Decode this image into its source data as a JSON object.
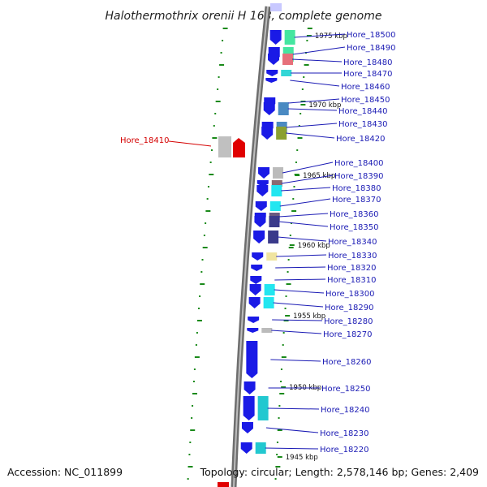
{
  "title": "Halothermothrix orenii H 168, complete genome",
  "footer": {
    "accession": "Accession: NC_011899",
    "summary": "Topology: circular; Length: 2,578,146 bp; Genes: 2,409"
  },
  "colors": {
    "backbone": "#7a7a7a",
    "cds_strand": "#1a1ae6",
    "label": "#1a1ab4",
    "highlight": "#d40000",
    "tick": "#1a8a1a"
  },
  "scale_labels": [
    "1975 kbp",
    "1970 kbp",
    "1965 kbp",
    "1960 kbp",
    "1955 kbp",
    "1950 kbp",
    "1945 kbp"
  ],
  "genes": [
    {
      "locus": "Hore_18500",
      "cog_color": "#44e6a0"
    },
    {
      "locus": "Hore_18490",
      "cog_color": "#44e6a0"
    },
    {
      "locus": "Hore_18480",
      "cog_color": "#e6707a"
    },
    {
      "locus": "Hore_18470",
      "cog_color": "#33d6d6"
    },
    {
      "locus": "Hore_18460",
      "cog_color": ""
    },
    {
      "locus": "Hore_18450",
      "cog_color": ""
    },
    {
      "locus": "Hore_18440",
      "cog_color": "#4a8ac2"
    },
    {
      "locus": "Hore_18430",
      "cog_color": "#4a8ac2"
    },
    {
      "locus": "Hore_18420",
      "cog_color": "#8aa030"
    },
    {
      "locus": "Hore_18400",
      "cog_color": "#bbbbbb"
    },
    {
      "locus": "Hore_18390",
      "cog_color": "#8a6a70"
    },
    {
      "locus": "Hore_18380",
      "cog_color": "#22e6f0"
    },
    {
      "locus": "Hore_18370",
      "cog_color": "#22e6f0"
    },
    {
      "locus": "Hore_18360",
      "cog_color": "#6a5a80"
    },
    {
      "locus": "Hore_18350",
      "cog_color": "#3a3a8a"
    },
    {
      "locus": "Hore_18340",
      "cog_color": "#3a3a8a"
    },
    {
      "locus": "Hore_18330",
      "cog_color": "#f0e4a0"
    },
    {
      "locus": "Hore_18320",
      "cog_color": ""
    },
    {
      "locus": "Hore_18310",
      "cog_color": ""
    },
    {
      "locus": "Hore_18300",
      "cog_color": "#22e6f0"
    },
    {
      "locus": "Hore_18290",
      "cog_color": "#22e6f0"
    },
    {
      "locus": "Hore_18280",
      "cog_color": ""
    },
    {
      "locus": "Hore_18270",
      "cog_color": "#bbbbbb"
    },
    {
      "locus": "Hore_18260",
      "cog_color": ""
    },
    {
      "locus": "Hore_18250",
      "cog_color": ""
    },
    {
      "locus": "Hore_18240",
      "cog_color": "#22c8d0"
    },
    {
      "locus": "Hore_18230",
      "cog_color": ""
    },
    {
      "locus": "Hore_18220",
      "cog_color": "#22c8d0"
    }
  ],
  "highlight_gene": {
    "locus": "Hore_18410",
    "cog_color": "#d40000"
  }
}
